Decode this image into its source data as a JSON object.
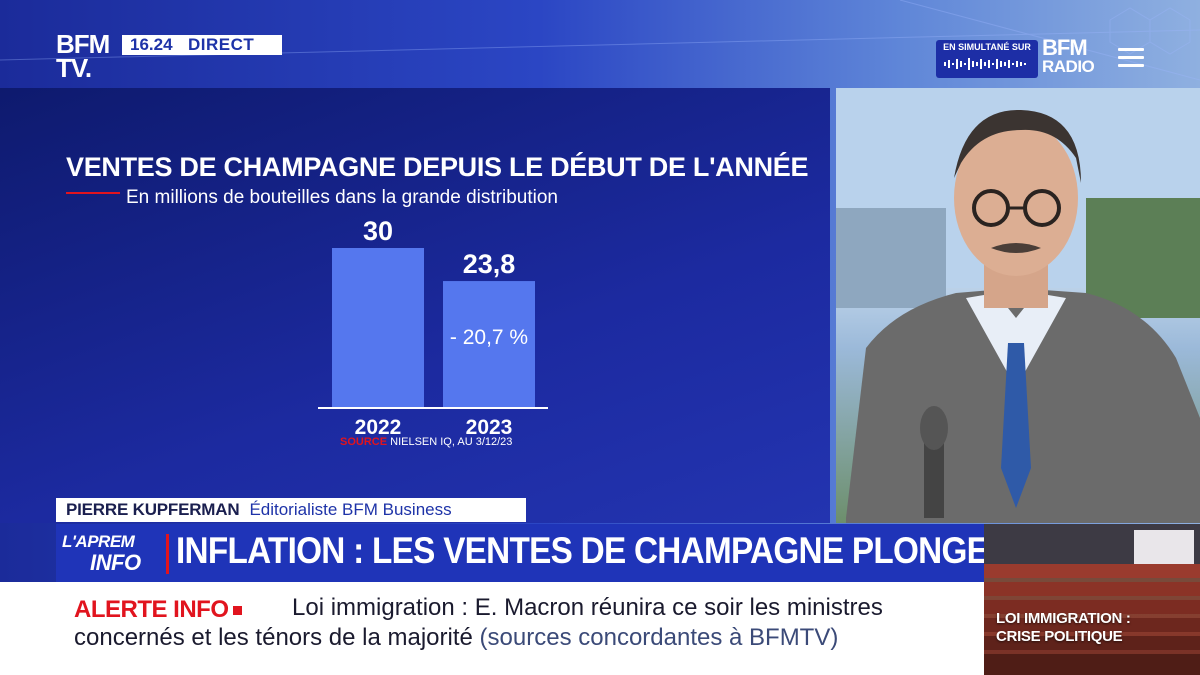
{
  "header": {
    "channel_logo_line1": "BFM",
    "channel_logo_line2": "TV.",
    "time": "16.24",
    "status": "DIRECT",
    "simulcast_label": "EN SIMULTANÉ SUR",
    "radio_logo_line1": "BFM",
    "radio_logo_line2": "RADIO",
    "menu_icon": "hamburger-menu-icon"
  },
  "chart": {
    "title": "VENTES DE CHAMPAGNE DEPUIS LE DÉBUT DE L'ANNÉE",
    "subtitle": "En millions de bouteilles dans la grande distribution",
    "source_label": "SOURCE",
    "source_text": " NIELSEN IQ, AU 3/12/23"
  },
  "chart_data": {
    "type": "bar",
    "title": "VENTES DE CHAMPAGNE DEPUIS LE DÉBUT DE L'ANNÉE",
    "subtitle": "En millions de bouteilles dans la grande distribution",
    "categories": [
      "2022",
      "2023"
    ],
    "values": [
      30,
      23.8
    ],
    "value_labels": [
      "30",
      "23,8"
    ],
    "annotation": "- 20,7 %",
    "ylim": [
      0,
      30
    ],
    "grid": false,
    "bar_color": "#5577ee"
  },
  "lower_third": {
    "name": "PIERRE KUPFERMAN",
    "role": "Éditorialiste BFM Business",
    "show_line1": "L'APREM",
    "show_line2": "INFO",
    "headline": "INFLATION : LES VENTES DE CHAMPAGNE PLONGENT"
  },
  "ticker": {
    "alert_label": "ALERTE INFO",
    "line1": "Loi immigration : E. Macron réunira ce soir les ministres",
    "line2": "concernés et les ténors de la majorité",
    "line2_source": "(sources concordantes à BFMTV)"
  },
  "inset": {
    "caption_line1": "LOI IMMIGRATION :",
    "caption_line2": "CRISE POLITIQUE"
  },
  "colors": {
    "brand_blue": "#1f34b8",
    "alert_red": "#e1141e",
    "bar_blue": "#5577ee"
  }
}
